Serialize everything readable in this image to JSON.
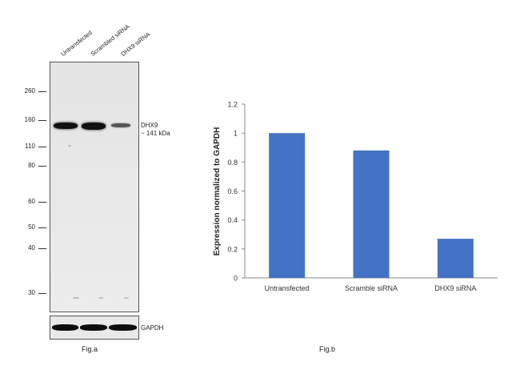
{
  "figure_a": {
    "lanes": [
      "Untransfected",
      "Scrambled siRNA",
      "DHX9 siRNA"
    ],
    "mw_markers": [
      "260",
      "160",
      "110",
      "80",
      "60",
      "50",
      "40",
      "30"
    ],
    "target_label": "DHX9",
    "target_size": "~ 141 kDa",
    "loading_control_label": "GAPDH",
    "caption": "Fig.a"
  },
  "chart_data": {
    "type": "bar",
    "categories": [
      "Untransfected",
      "Scramble siRNA",
      "DHX9 siRNA"
    ],
    "values": [
      1.0,
      0.88,
      0.27
    ],
    "title": "",
    "xlabel": "",
    "ylabel": "Expression normalized to GAPDH",
    "ylim": [
      0,
      1.2
    ],
    "yticks": [
      "0",
      "0.2",
      "0.4",
      "0.6",
      "0.8",
      "1",
      "1.2"
    ],
    "bar_color": "#4472c4",
    "grid": false
  },
  "figure_b": {
    "caption": "Fig.b"
  }
}
